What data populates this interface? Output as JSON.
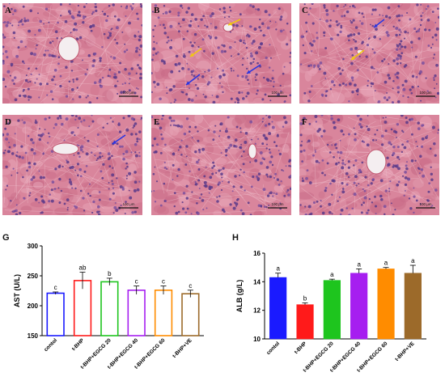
{
  "micrographs": [
    {
      "letter": "A",
      "scale": "100 μm",
      "arrows": []
    },
    {
      "letter": "B",
      "scale": "100 μm",
      "arrows": [
        {
          "type": "yellow"
        },
        {
          "type": "yellow"
        },
        {
          "type": "blue"
        },
        {
          "type": "blue"
        }
      ]
    },
    {
      "letter": "C",
      "scale": "100 μm",
      "arrows": [
        {
          "type": "blue"
        },
        {
          "type": "yellow"
        }
      ]
    },
    {
      "letter": "D",
      "scale": "100 μm",
      "arrows": [
        {
          "type": "blue"
        }
      ]
    },
    {
      "letter": "E",
      "scale": "100 μm",
      "arrows": []
    },
    {
      "letter": "F",
      "scale": "100 μm",
      "arrows": []
    }
  ],
  "colors": {
    "yellow_arrow": "#f2c80f",
    "blue_arrow": "#2b35e0"
  },
  "chart_data": [
    {
      "type": "bar",
      "panel": "G",
      "ylabel": "AST (U/L)",
      "ylim": [
        150,
        300
      ],
      "yticks": [
        150,
        200,
        250,
        300
      ],
      "categories": [
        "contol",
        "t-BHP",
        "t-BHP+EGCG 20",
        "t-BHP+EGCG 40",
        "t-BHP+EGCG 60",
        "t-BHP+VE"
      ],
      "values": [
        221,
        242,
        240,
        226,
        226,
        220
      ],
      "errors": [
        2,
        14,
        6,
        7,
        7,
        6
      ],
      "labels": [
        "c",
        "ab",
        "b",
        "c",
        "c",
        "c"
      ],
      "colors": [
        "#1a1aff",
        "#ff1a1a",
        "#1ec51e",
        "#a61ef0",
        "#ff8c00",
        "#9c6a2a"
      ],
      "filled": false
    },
    {
      "type": "bar",
      "panel": "H",
      "ylabel": "ALB (g/L)",
      "ylim": [
        10,
        16
      ],
      "yticks": [
        10,
        12,
        14,
        16
      ],
      "categories": [
        "contol",
        "t-BHP",
        "t-BHP+EGCG 20",
        "t-BHP+EGCG 40",
        "t-BHP+EGCG 60",
        "t-BHP+VE"
      ],
      "values": [
        14.3,
        12.4,
        14.1,
        14.6,
        14.9,
        14.6
      ],
      "errors": [
        0.3,
        0.12,
        0.08,
        0.3,
        0.1,
        0.55
      ],
      "labels": [
        "a",
        "b",
        "a",
        "a",
        "a",
        "a"
      ],
      "colors": [
        "#1a1aff",
        "#ff1a1a",
        "#1ec51e",
        "#a61ef0",
        "#ff8c00",
        "#9c6a2a"
      ],
      "filled": true
    }
  ]
}
